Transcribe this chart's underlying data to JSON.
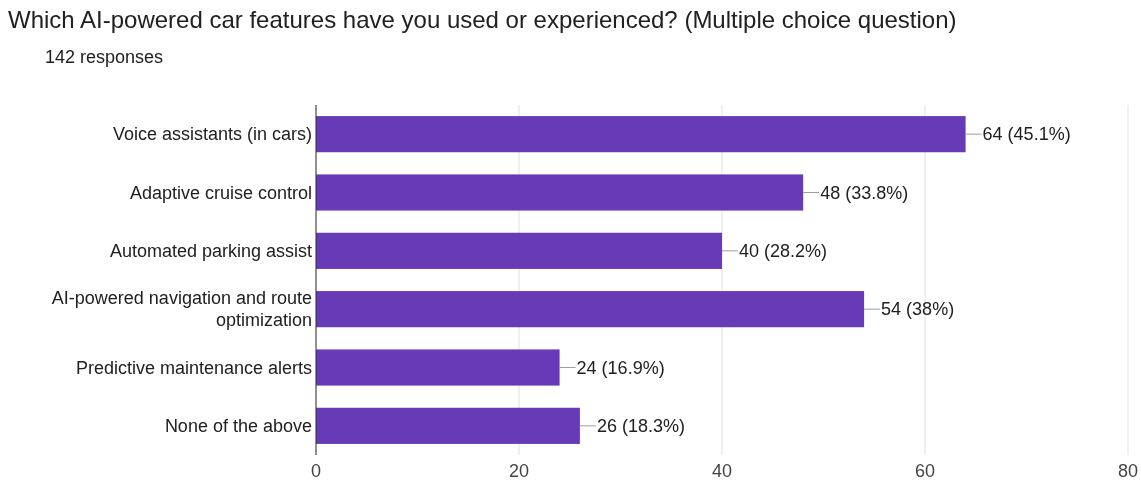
{
  "chart_data": {
    "type": "bar",
    "orientation": "horizontal",
    "title": "Which AI-powered car features have you used or experienced? (Multiple choice question)",
    "subtitle": "142 responses",
    "categories": [
      "Voice assistants (in cars)",
      "Adaptive cruise control",
      "Automated parking assist",
      "AI-powered navigation and route optimization",
      "Predictive maintenance alerts",
      "None of the above"
    ],
    "values": [
      64,
      48,
      40,
      54,
      24,
      26
    ],
    "value_labels": [
      "64 (45.1%)",
      "48 (33.8%)",
      "40 (28.2%)",
      "54 (38%)",
      "24 (16.9%)",
      "26 (18.3%)"
    ],
    "color": "#673ab7",
    "xlim": [
      0,
      80
    ],
    "xticks": [
      0,
      20,
      40,
      60,
      80
    ],
    "grid": "x"
  }
}
